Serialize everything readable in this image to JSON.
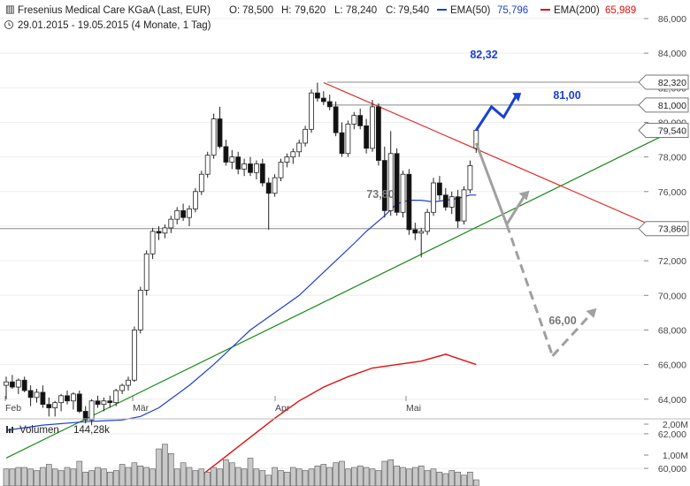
{
  "header": {
    "title": "Fresenius Medical Care KGaA (Last, EUR)",
    "open_label": "O:",
    "open": "78,500",
    "high_label": "H:",
    "high": "79,620",
    "low_label": "L:",
    "low": "78,240",
    "close_label": "C:",
    "close": "79,540",
    "ema50_label": "EMA(50)",
    "ema50": "75,796",
    "ema200_label": "EMA(200)",
    "ema200": "65,989",
    "period": "29.01.2015 - 19.05.2015 (4 Monate, 1 Tag)"
  },
  "colors": {
    "ema50": "#1f3fd0",
    "ema200": "#e01010",
    "support_trend": "#1a8a1a",
    "resistance_trend": "#e03030",
    "projection_up": "#1a3fd6",
    "projection_down": "#a0a0a0",
    "volume_bar": "#c8c8c8"
  },
  "chart_data": {
    "type": "candlestick",
    "y_axis": {
      "min": 60,
      "max": 86,
      "tick_labels": [
        "86,000",
        "84,000",
        "82,000",
        "80,000",
        "78,000",
        "76,000",
        "74,000",
        "72,000",
        "70,000",
        "68,000",
        "66,000",
        "64,000",
        "62,000",
        "60,000"
      ]
    },
    "x_axis": {
      "tick_labels": [
        "Feb",
        "Mär",
        "Apr",
        "Mai"
      ]
    },
    "price_boxes": [
      {
        "label": "82,320",
        "value": 82.32
      },
      {
        "label": "81,000",
        "value": 81.0
      },
      {
        "label": "79,540",
        "value": 79.54
      },
      {
        "label": "73,860",
        "value": 73.86
      }
    ],
    "horizontal_levels": [
      82.32,
      81.0,
      73.86
    ],
    "annotations": [
      {
        "text": "82,32",
        "value": 82.32,
        "style": "blue"
      },
      {
        "text": "81,00",
        "value": 81.0,
        "style": "blue"
      },
      {
        "text": "73,80",
        "value": 73.8,
        "style": "gray"
      },
      {
        "text": "66,00",
        "value": 66.0,
        "style": "gray"
      }
    ],
    "candles": [
      {
        "o": 64.8,
        "h": 65.3,
        "l": 64.0,
        "c": 65.0
      },
      {
        "o": 65.0,
        "h": 65.4,
        "l": 64.6,
        "c": 64.7
      },
      {
        "o": 64.7,
        "h": 65.2,
        "l": 64.3,
        "c": 65.1
      },
      {
        "o": 65.1,
        "h": 65.3,
        "l": 64.4,
        "c": 64.5
      },
      {
        "o": 64.5,
        "h": 64.8,
        "l": 63.6,
        "c": 64.1
      },
      {
        "o": 64.1,
        "h": 64.6,
        "l": 63.8,
        "c": 64.4
      },
      {
        "o": 64.4,
        "h": 64.8,
        "l": 63.5,
        "c": 63.7
      },
      {
        "o": 63.7,
        "h": 64.1,
        "l": 63.0,
        "c": 63.5
      },
      {
        "o": 63.5,
        "h": 63.9,
        "l": 63.0,
        "c": 63.8
      },
      {
        "o": 63.8,
        "h": 64.3,
        "l": 63.3,
        "c": 64.2
      },
      {
        "o": 64.2,
        "h": 64.5,
        "l": 63.7,
        "c": 63.9
      },
      {
        "o": 63.9,
        "h": 64.4,
        "l": 63.4,
        "c": 64.3
      },
      {
        "o": 64.3,
        "h": 64.5,
        "l": 63.2,
        "c": 63.3
      },
      {
        "o": 63.3,
        "h": 63.6,
        "l": 62.6,
        "c": 62.8
      },
      {
        "o": 62.8,
        "h": 64.0,
        "l": 62.5,
        "c": 63.9
      },
      {
        "o": 63.9,
        "h": 64.2,
        "l": 63.5,
        "c": 63.7
      },
      {
        "o": 63.7,
        "h": 64.1,
        "l": 63.3,
        "c": 63.9
      },
      {
        "o": 63.9,
        "h": 64.2,
        "l": 63.5,
        "c": 63.8
      },
      {
        "o": 63.8,
        "h": 64.6,
        "l": 63.6,
        "c": 64.5
      },
      {
        "o": 64.5,
        "h": 64.9,
        "l": 64.3,
        "c": 64.8
      },
      {
        "o": 64.8,
        "h": 65.3,
        "l": 64.5,
        "c": 65.1
      },
      {
        "o": 65.1,
        "h": 68.2,
        "l": 65.0,
        "c": 68.0
      },
      {
        "o": 68.0,
        "h": 70.5,
        "l": 67.8,
        "c": 70.3
      },
      {
        "o": 70.3,
        "h": 72.6,
        "l": 70.0,
        "c": 72.4
      },
      {
        "o": 72.4,
        "h": 73.9,
        "l": 72.1,
        "c": 73.7
      },
      {
        "o": 73.7,
        "h": 74.0,
        "l": 73.2,
        "c": 73.6
      },
      {
        "o": 73.6,
        "h": 74.1,
        "l": 73.3,
        "c": 73.9
      },
      {
        "o": 73.9,
        "h": 74.6,
        "l": 73.6,
        "c": 74.4
      },
      {
        "o": 74.4,
        "h": 75.1,
        "l": 74.1,
        "c": 74.9
      },
      {
        "o": 74.9,
        "h": 75.3,
        "l": 74.3,
        "c": 74.5
      },
      {
        "o": 74.5,
        "h": 75.2,
        "l": 74.0,
        "c": 75.0
      },
      {
        "o": 75.0,
        "h": 76.2,
        "l": 74.8,
        "c": 76.0
      },
      {
        "o": 76.0,
        "h": 77.2,
        "l": 75.8,
        "c": 77.0
      },
      {
        "o": 77.0,
        "h": 78.3,
        "l": 76.8,
        "c": 78.1
      },
      {
        "o": 78.1,
        "h": 80.5,
        "l": 77.9,
        "c": 80.2
      },
      {
        "o": 80.2,
        "h": 80.9,
        "l": 78.5,
        "c": 78.6
      },
      {
        "o": 78.6,
        "h": 79.0,
        "l": 77.5,
        "c": 77.7
      },
      {
        "o": 77.7,
        "h": 78.4,
        "l": 77.3,
        "c": 78.0
      },
      {
        "o": 78.0,
        "h": 78.3,
        "l": 77.0,
        "c": 77.3
      },
      {
        "o": 77.3,
        "h": 77.9,
        "l": 76.9,
        "c": 77.6
      },
      {
        "o": 77.6,
        "h": 78.0,
        "l": 76.9,
        "c": 77.1
      },
      {
        "o": 77.1,
        "h": 77.8,
        "l": 76.7,
        "c": 77.6
      },
      {
        "o": 77.6,
        "h": 77.9,
        "l": 76.3,
        "c": 76.5
      },
      {
        "o": 76.5,
        "h": 76.8,
        "l": 73.8,
        "c": 75.9
      },
      {
        "o": 75.9,
        "h": 77.0,
        "l": 75.7,
        "c": 76.8
      },
      {
        "o": 76.8,
        "h": 77.9,
        "l": 76.6,
        "c": 77.7
      },
      {
        "o": 77.7,
        "h": 78.2,
        "l": 77.4,
        "c": 78.0
      },
      {
        "o": 78.0,
        "h": 78.5,
        "l": 77.6,
        "c": 78.3
      },
      {
        "o": 78.3,
        "h": 79.0,
        "l": 78.0,
        "c": 78.8
      },
      {
        "o": 78.8,
        "h": 79.8,
        "l": 78.6,
        "c": 79.6
      },
      {
        "o": 79.6,
        "h": 81.9,
        "l": 79.4,
        "c": 81.7
      },
      {
        "o": 81.7,
        "h": 82.3,
        "l": 81.2,
        "c": 81.4
      },
      {
        "o": 81.4,
        "h": 81.8,
        "l": 81.0,
        "c": 81.2
      },
      {
        "o": 81.2,
        "h": 81.6,
        "l": 80.7,
        "c": 80.9
      },
      {
        "o": 80.9,
        "h": 81.2,
        "l": 79.2,
        "c": 79.4
      },
      {
        "o": 79.4,
        "h": 80.0,
        "l": 78.0,
        "c": 78.2
      },
      {
        "o": 78.2,
        "h": 80.1,
        "l": 78.0,
        "c": 79.9
      },
      {
        "o": 79.9,
        "h": 80.6,
        "l": 79.6,
        "c": 80.4
      },
      {
        "o": 80.4,
        "h": 80.8,
        "l": 79.6,
        "c": 79.8
      },
      {
        "o": 79.8,
        "h": 80.2,
        "l": 78.2,
        "c": 78.5
      },
      {
        "o": 78.5,
        "h": 81.3,
        "l": 78.3,
        "c": 80.9
      },
      {
        "o": 80.9,
        "h": 81.1,
        "l": 77.5,
        "c": 77.8
      },
      {
        "o": 77.8,
        "h": 78.6,
        "l": 74.5,
        "c": 74.9
      },
      {
        "o": 74.9,
        "h": 79.5,
        "l": 74.6,
        "c": 78.2
      },
      {
        "o": 78.2,
        "h": 78.5,
        "l": 74.6,
        "c": 74.8
      },
      {
        "o": 74.8,
        "h": 77.2,
        "l": 74.5,
        "c": 77.0
      },
      {
        "o": 77.0,
        "h": 77.3,
        "l": 73.5,
        "c": 73.8
      },
      {
        "o": 73.8,
        "h": 74.2,
        "l": 73.2,
        "c": 73.6
      },
      {
        "o": 73.6,
        "h": 73.9,
        "l": 72.2,
        "c": 73.7
      },
      {
        "o": 73.7,
        "h": 75.0,
        "l": 73.5,
        "c": 74.8
      },
      {
        "o": 74.8,
        "h": 76.8,
        "l": 74.6,
        "c": 76.5
      },
      {
        "o": 76.5,
        "h": 76.9,
        "l": 75.5,
        "c": 75.8
      },
      {
        "o": 75.8,
        "h": 76.2,
        "l": 74.9,
        "c": 75.1
      },
      {
        "o": 75.1,
        "h": 76.0,
        "l": 74.7,
        "c": 75.7
      },
      {
        "o": 75.7,
        "h": 76.1,
        "l": 73.9,
        "c": 74.3
      },
      {
        "o": 74.3,
        "h": 76.3,
        "l": 74.1,
        "c": 76.1
      },
      {
        "o": 76.1,
        "h": 77.8,
        "l": 75.9,
        "c": 77.5
      },
      {
        "o": 78.5,
        "h": 79.62,
        "l": 78.24,
        "c": 79.54
      }
    ],
    "volume": {
      "label": "Volumen",
      "value": "144,28k",
      "y_tick_labels": [
        "2,00M",
        "1,00M"
      ],
      "y_max": 2.0,
      "values": [
        0.55,
        0.55,
        0.6,
        0.6,
        0.55,
        0.5,
        0.6,
        0.7,
        0.55,
        0.5,
        0.6,
        0.55,
        0.8,
        0.45,
        0.5,
        0.6,
        0.55,
        0.45,
        0.5,
        0.7,
        0.6,
        0.75,
        0.65,
        0.6,
        0.55,
        1.2,
        1.35,
        1.05,
        0.55,
        0.75,
        0.6,
        0.5,
        0.55,
        0.45,
        0.6,
        0.55,
        0.85,
        0.75,
        0.6,
        0.55,
        0.9,
        0.55,
        0.5,
        0.35,
        0.6,
        0.5,
        0.45,
        0.6,
        0.55,
        0.5,
        0.55,
        0.65,
        0.7,
        0.6,
        0.75,
        0.8,
        0.55,
        0.6,
        0.65,
        0.6,
        0.55,
        0.5,
        0.8,
        0.85,
        0.65,
        0.6,
        0.55,
        0.6,
        0.65,
        0.5,
        0.55,
        0.45,
        0.4,
        0.5,
        0.45,
        0.35,
        0.45,
        0.2
      ]
    },
    "ema50": [
      [
        0,
        62.2
      ],
      [
        6,
        62.5
      ],
      [
        13,
        62.7
      ],
      [
        19,
        62.8
      ],
      [
        22,
        63.0
      ],
      [
        25,
        63.5
      ],
      [
        30,
        64.8
      ],
      [
        34,
        66.0
      ],
      [
        37,
        67.0
      ],
      [
        40,
        68.0
      ],
      [
        44,
        69.0
      ],
      [
        48,
        70.0
      ],
      [
        51,
        71.0
      ],
      [
        54,
        72.0
      ],
      [
        57,
        73.0
      ],
      [
        59,
        73.7
      ],
      [
        62,
        74.6
      ],
      [
        64,
        75.3
      ],
      [
        66,
        75.5
      ],
      [
        68,
        75.5
      ],
      [
        70,
        75.4
      ],
      [
        72,
        75.5
      ],
      [
        74,
        75.6
      ],
      [
        76,
        75.8
      ],
      [
        77,
        75.8
      ]
    ],
    "ema200": [
      [
        32,
        59.6
      ],
      [
        36,
        60.7
      ],
      [
        40,
        61.8
      ],
      [
        44,
        62.9
      ],
      [
        48,
        63.9
      ],
      [
        52,
        64.7
      ],
      [
        56,
        65.3
      ],
      [
        60,
        65.8
      ],
      [
        64,
        66.0
      ],
      [
        68,
        66.2
      ],
      [
        72,
        66.6
      ],
      [
        77,
        66.0
      ]
    ],
    "trendlines": [
      {
        "name": "support",
        "from": [
          0,
          60.6
        ],
        "to": [
          108,
          79.3
        ]
      },
      {
        "name": "resistance",
        "from": [
          52,
          82.3
        ],
        "to": [
          108,
          73.7
        ]
      }
    ],
    "projections": {
      "up": [
        [
          77,
          79.54
        ],
        [
          79.5,
          80.9
        ],
        [
          81.5,
          80.3
        ],
        [
          83.5,
          81.5
        ]
      ],
      "up_arrow_head": [
        83.5,
        81.5
      ],
      "down_solid": [
        [
          77,
          78.8
        ],
        [
          82,
          74.1
        ]
      ],
      "down_solid_arrow": [
        [
          82,
          74.1
        ],
        [
          85,
          75.8
        ]
      ],
      "down_dashed": [
        [
          82,
          74.1
        ],
        [
          89.5,
          66.5
        ]
      ],
      "down_dashed_arrow": [
        [
          89.5,
          66.5
        ],
        [
          96,
          69.0
        ]
      ]
    }
  }
}
